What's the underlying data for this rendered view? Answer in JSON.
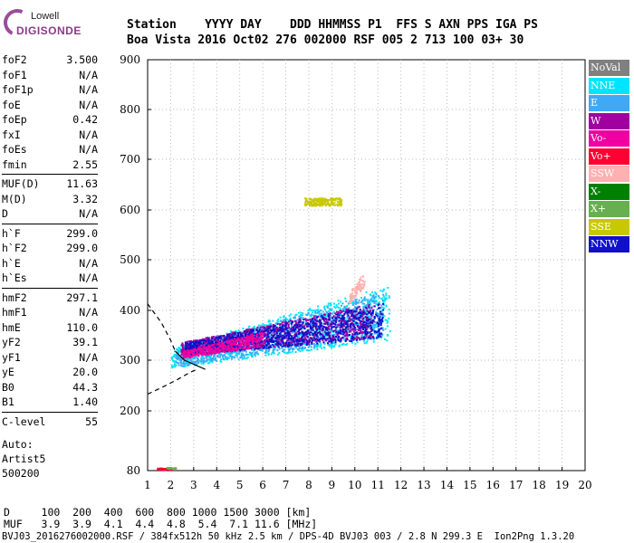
{
  "logo": {
    "line1": "Lowell",
    "line2": "DIGISONDE",
    "color": "#9b4d9b"
  },
  "header": {
    "row1": "Station    YYYY DAY    DDD HHMMSS P1  FFS S AXN PPS IGA PS",
    "row2": "Boa Vista 2016 Oct02 276 002000 RSF 005 2 713 100 03+ 30"
  },
  "params": {
    "group1": [
      {
        "name": "foF2",
        "value": "3.500"
      },
      {
        "name": "foF1",
        "value": "N/A"
      },
      {
        "name": "foF1p",
        "value": "N/A"
      },
      {
        "name": "foE",
        "value": "N/A"
      },
      {
        "name": "foEp",
        "value": "0.42"
      },
      {
        "name": "fxI",
        "value": "N/A"
      },
      {
        "name": "foEs",
        "value": "N/A"
      },
      {
        "name": "fmin",
        "value": "2.55"
      }
    ],
    "group2": [
      {
        "name": "MUF(D)",
        "value": "11.63"
      },
      {
        "name": "M(D)",
        "value": "3.32"
      },
      {
        "name": "D",
        "value": "N/A"
      }
    ],
    "group3": [
      {
        "name": "h`F",
        "value": "299.0"
      },
      {
        "name": "h`F2",
        "value": "299.0"
      },
      {
        "name": "h`E",
        "value": "N/A"
      },
      {
        "name": "h`Es",
        "value": "N/A"
      }
    ],
    "group4": [
      {
        "name": "hmF2",
        "value": "297.1"
      },
      {
        "name": "hmF1",
        "value": "N/A"
      },
      {
        "name": "hmE",
        "value": "110.0"
      },
      {
        "name": "yF2",
        "value": "39.1"
      },
      {
        "name": "yF1",
        "value": "N/A"
      },
      {
        "name": "yE",
        "value": "20.0"
      },
      {
        "name": "B0",
        "value": "44.3"
      },
      {
        "name": "B1",
        "value": "1.40"
      }
    ],
    "group5": [
      {
        "name": "C-level",
        "value": "55"
      }
    ]
  },
  "auto": {
    "line1": "Auto:",
    "line2": "Artist5",
    "line3": "500200"
  },
  "legend": [
    {
      "label": "NoVal",
      "color": "#808080"
    },
    {
      "label": "NNE",
      "color": "#00e5ff"
    },
    {
      "label": "E",
      "color": "#3fa9f5"
    },
    {
      "label": "W",
      "color": "#a000a0"
    },
    {
      "label": "Vo-",
      "color": "#f000a0"
    },
    {
      "label": "Vo+",
      "color": "#ff0033"
    },
    {
      "label": "SSW",
      "color": "#ffb0b0"
    },
    {
      "label": "X-",
      "color": "#008000"
    },
    {
      "label": "X+",
      "color": "#66b050"
    },
    {
      "label": "SSE",
      "color": "#c8c800"
    },
    {
      "label": "NNW",
      "color": "#1010c8"
    }
  ],
  "footer": {
    "row1": "D     100  200  400  600  800 1000 1500 3000 [km]",
    "row2": "MUF   3.9  3.9  4.1  4.4  4.8  5.4  7.1 11.6 [MHz]",
    "row3": "BVJ03_2016276002000.RSF / 384fx512h 50 kHz 2.5 km / DPS-4D BVJ03 003 / 2.8 N 299.3 E  Ion2Png 1.3.20"
  },
  "chart_data": {
    "type": "scatter",
    "title": "",
    "xlabel": "",
    "ylabel": "",
    "xlim": [
      1,
      20
    ],
    "ylim": [
      80,
      900
    ],
    "x_ticks": [
      1,
      2,
      3,
      4,
      5,
      6,
      7,
      8,
      9,
      10,
      11,
      12,
      13,
      14,
      15,
      16,
      17,
      18,
      19,
      20
    ],
    "y_ticks": [
      80,
      200,
      300,
      400,
      500,
      600,
      700,
      800,
      900
    ],
    "y_tick_labels": [
      "80",
      "200",
      "300",
      "400",
      "500",
      "600",
      "700",
      "800",
      "900"
    ],
    "y_scale": "nonlinear (printed tick values)",
    "traces": [
      {
        "name": "O-trace fit",
        "style": "dashed",
        "points": [
          [
            1.0,
            413
          ],
          [
            1.6,
            375
          ],
          [
            2.0,
            340
          ],
          [
            2.2,
            318
          ]
        ]
      },
      {
        "name": "profile",
        "style": "solid",
        "points": [
          [
            2.2,
            318
          ],
          [
            2.6,
            300
          ],
          [
            3.0,
            292
          ],
          [
            3.5,
            282
          ]
        ]
      },
      {
        "name": "lower profile",
        "style": "dashed",
        "points": [
          [
            1.0,
            233
          ],
          [
            1.7,
            248
          ],
          [
            2.3,
            262
          ],
          [
            2.8,
            275
          ],
          [
            3.2,
            283
          ]
        ]
      }
    ],
    "clusters": [
      {
        "legend": "NNE",
        "x_range": [
          2.0,
          11.5
        ],
        "y_base": [
          300,
          380
        ],
        "y_spread": [
          40,
          110
        ]
      },
      {
        "legend": "E",
        "x_range": [
          2.2,
          11.2
        ],
        "y_base": [
          300,
          380
        ],
        "y_spread": [
          35,
          90
        ]
      },
      {
        "legend": "W",
        "x_range": [
          2.4,
          10.8
        ],
        "y_base": [
          320,
          370
        ],
        "y_spread": [
          25,
          70
        ]
      },
      {
        "legend": "NNW",
        "x_range": [
          2.6,
          11.2
        ],
        "y_base": [
          320,
          370
        ],
        "y_spread": [
          25,
          70
        ]
      },
      {
        "legend": "SSE",
        "x_range": [
          7.8,
          9.4
        ],
        "y_base": [
          615,
          615
        ],
        "y_spread": [
          15,
          15
        ]
      },
      {
        "legend": "Vo-",
        "x_range": [
          2.5,
          6.0
        ],
        "y_base": [
          310,
          340
        ],
        "y_spread": [
          15,
          30
        ]
      },
      {
        "legend": "Vo+",
        "x_range": [
          1.4,
          2.0
        ],
        "y_base": [
          84,
          84
        ],
        "y_spread": [
          3,
          3
        ]
      },
      {
        "legend": "X+",
        "x_range": [
          1.8,
          2.2
        ],
        "y_base": [
          86,
          86
        ],
        "y_spread": [
          2,
          2
        ]
      },
      {
        "legend": "SSW",
        "x_range": [
          9.7,
          10.4
        ],
        "y_base": [
          420,
          460
        ],
        "y_spread": [
          20,
          30
        ]
      }
    ],
    "grid": "dotted vertical and horizontal"
  }
}
